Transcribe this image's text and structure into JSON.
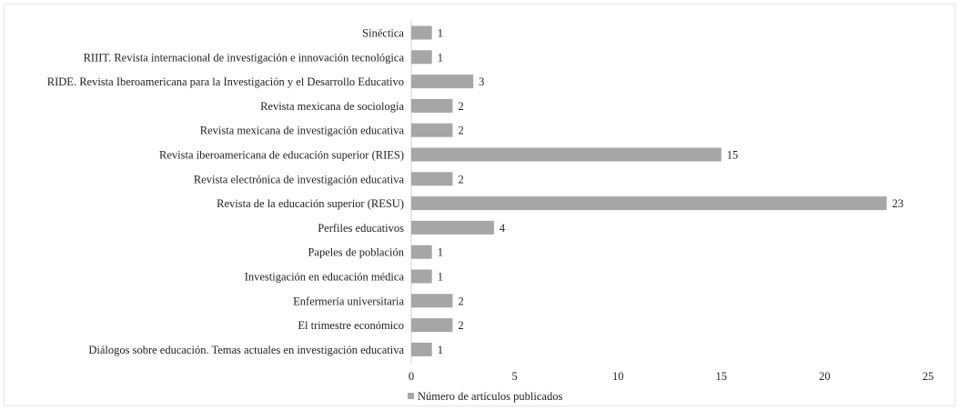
{
  "chart_data": {
    "type": "bar",
    "orientation": "horizontal",
    "categories": [
      "Sinéctica",
      "RIIIT. Revista internacional de investigación e innovación tecnológica",
      "RIDE. Revista Iberoamericana para la Investigación y el Desarrollo Educativo",
      "Revista mexicana de sociología",
      "Revista mexicana de investigación educativa",
      "Revista iberoamericana de educación superior (RIES)",
      "Revista electrónica de investigación educativa",
      "Revista de la educación superior (RESU)",
      "Perfiles educativos",
      "Papeles de población",
      "Investigación en educación médica",
      "Enfermería universitaria",
      "El trimestre económico",
      "Diálogos sobre educación. Temas actuales en investigación educativa"
    ],
    "series": [
      {
        "name": "Número de artículos publicados",
        "values": [
          1,
          1,
          3,
          2,
          2,
          15,
          2,
          23,
          4,
          1,
          1,
          2,
          2,
          1
        ]
      }
    ],
    "xlim": [
      0,
      25
    ],
    "xticks": [
      "0",
      "5",
      "10",
      "15",
      "20",
      "25"
    ],
    "data_labels": true,
    "grid": false,
    "legend": "bottom-center",
    "bar_color": "#a6a6a6",
    "axis_color": "#d0d0d0"
  }
}
